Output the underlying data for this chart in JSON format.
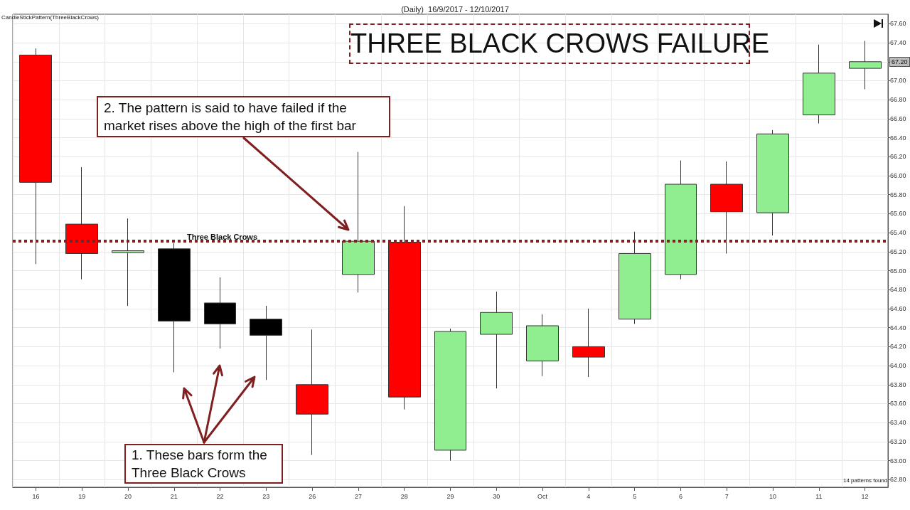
{
  "chart_data": {
    "type": "candlestick",
    "title": "(Daily)  16/9/2017 - 12/10/2017",
    "annotations": [
      "CandleStickPattern(ThreeBlackCrows)",
      "THREE BLACK CROWS FAILURE",
      "2. The pattern is said to have failed if the market rises above the high of the first bar",
      "1. These bars form the Three Black Crows",
      "14 patterns found",
      "67.20"
    ],
    "categories": [
      "16",
      "19",
      "20",
      "21",
      "22",
      "23",
      "26",
      "27",
      "28",
      "29",
      "30",
      "Oct",
      "4",
      "5",
      "6",
      "7",
      "10",
      "11",
      "12"
    ],
    "ohlc": [
      [
        67.27,
        67.34,
        65.07,
        65.93
      ],
      [
        65.49,
        66.09,
        64.91,
        65.18
      ],
      [
        65.19,
        65.55,
        64.63,
        65.21
      ],
      [
        65.23,
        65.29,
        63.93,
        64.47
      ],
      [
        64.66,
        64.93,
        64.18,
        64.44
      ],
      [
        64.49,
        64.63,
        63.85,
        64.32
      ],
      [
        63.8,
        64.38,
        63.06,
        63.49
      ],
      [
        64.96,
        66.25,
        64.77,
        65.31
      ],
      [
        65.3,
        65.68,
        63.54,
        63.67
      ],
      [
        63.11,
        64.39,
        63.0,
        64.36
      ],
      [
        64.33,
        64.78,
        63.76,
        64.56
      ],
      [
        64.05,
        64.54,
        63.89,
        64.42
      ],
      [
        64.2,
        64.6,
        63.88,
        64.09
      ],
      [
        64.49,
        65.41,
        64.44,
        65.18
      ],
      [
        64.96,
        66.16,
        64.91,
        65.91
      ],
      [
        65.91,
        66.15,
        65.18,
        65.62
      ],
      [
        65.61,
        66.48,
        65.37,
        66.44
      ],
      [
        66.64,
        67.38,
        66.55,
        67.08
      ],
      [
        67.13,
        67.42,
        66.91,
        67.2
      ]
    ],
    "colors": [
      "#ff0000",
      "#ff0000",
      "#90ee90",
      "#000000",
      "#000000",
      "#000000",
      "#ff0000",
      "#90ee90",
      "#ff0000",
      "#90ee90",
      "#90ee90",
      "#90ee90",
      "#ff0000",
      "#90ee90",
      "#90ee90",
      "#ff0000",
      "#90ee90",
      "#90ee90",
      "#90ee90"
    ],
    "ylim": [
      62.72,
      67.7
    ],
    "yticks": [
      {
        "value": 62.8,
        "label": "62.80"
      },
      {
        "value": 63.0,
        "label": "63.00"
      },
      {
        "value": 63.2,
        "label": "63.20"
      },
      {
        "value": 63.4,
        "label": "63.40"
      },
      {
        "value": 63.6,
        "label": "63.60"
      },
      {
        "value": 63.8,
        "label": "63.80"
      },
      {
        "value": 64.0,
        "label": "64.00"
      },
      {
        "value": 64.2,
        "label": "64.20"
      },
      {
        "value": 64.4,
        "label": "64.40"
      },
      {
        "value": 64.6,
        "label": "64.60"
      },
      {
        "value": 64.8,
        "label": "64.80"
      },
      {
        "value": 65.0,
        "label": "65.00"
      },
      {
        "value": 65.2,
        "label": "65.20"
      },
      {
        "value": 65.4,
        "label": "65.40"
      },
      {
        "value": 65.6,
        "label": "65.60"
      },
      {
        "value": 65.8,
        "label": "65.80"
      },
      {
        "value": 66.0,
        "label": "66.00"
      },
      {
        "value": 66.2,
        "label": "66.20"
      },
      {
        "value": 66.4,
        "label": "66.40"
      },
      {
        "value": 66.6,
        "label": "66.60"
      },
      {
        "value": 66.8,
        "label": "66.80"
      },
      {
        "value": 67.0,
        "label": "67.00"
      },
      {
        "value": 67.2,
        "label": "67.20"
      },
      {
        "value": 67.4,
        "label": "67.40"
      },
      {
        "value": 67.6,
        "label": "67.60"
      }
    ],
    "grid": true,
    "ref_lines": [
      {
        "axis": "y",
        "value": 65.31,
        "label": "Three Black Crows",
        "color": "#7f1f1f",
        "line_style": "dotted"
      }
    ]
  }
}
